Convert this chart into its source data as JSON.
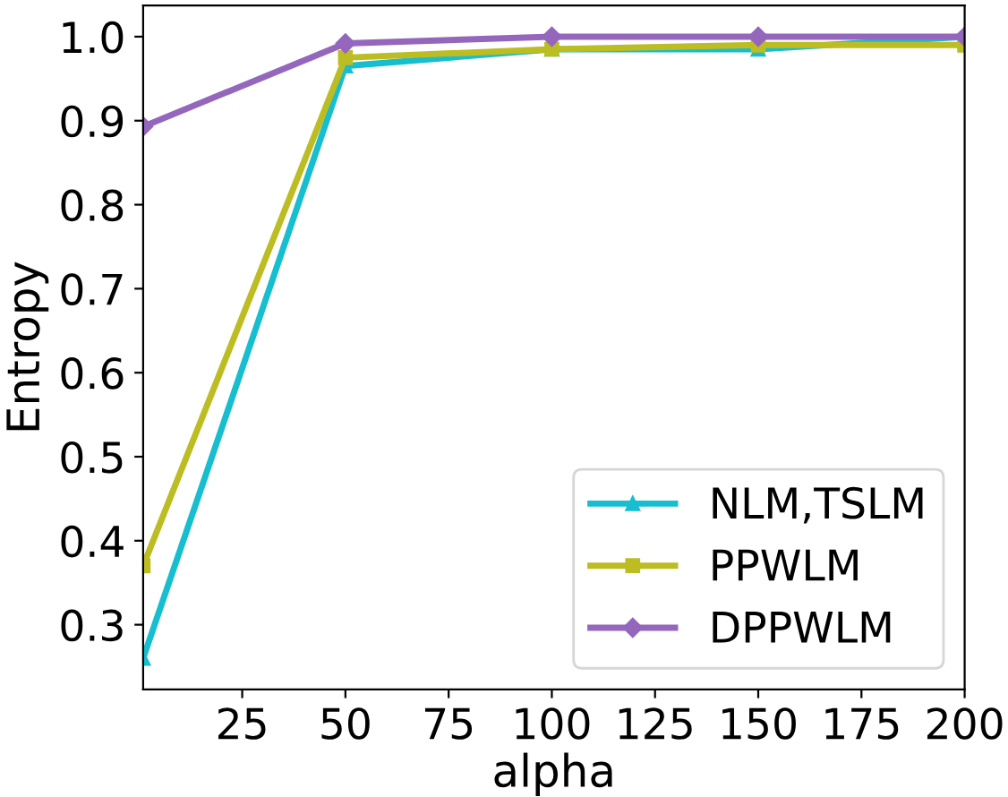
{
  "chart_data": {
    "type": "line",
    "xlabel": "alpha",
    "ylabel": "Entropy",
    "x": [
      1,
      50,
      100,
      150,
      200
    ],
    "series": [
      {
        "name": "NLM,TSLM",
        "color": "#17becf",
        "marker": "triangle",
        "values": [
          0.26,
          0.965,
          0.985,
          0.985,
          1.0
        ]
      },
      {
        "name": "PPWLM",
        "color": "#bcbd22",
        "marker": "square",
        "values": [
          0.37,
          0.975,
          0.985,
          0.99,
          0.99
        ]
      },
      {
        "name": "DPPWLM",
        "color": "#9467bd",
        "marker": "diamond",
        "values": [
          0.893,
          0.992,
          1.0,
          1.0,
          1.0
        ]
      }
    ],
    "xlim": [
      1,
      200
    ],
    "xticks": [
      25,
      50,
      75,
      100,
      125,
      150,
      175,
      200
    ],
    "ylim": [
      0.223,
      1.037
    ],
    "yticks": [
      0.3,
      0.4,
      0.5,
      0.6,
      0.7,
      0.8,
      0.9,
      {
        "value": 1.0,
        "label": "1.0"
      }
    ],
    "legend": "bottom right",
    "grid": false
  }
}
